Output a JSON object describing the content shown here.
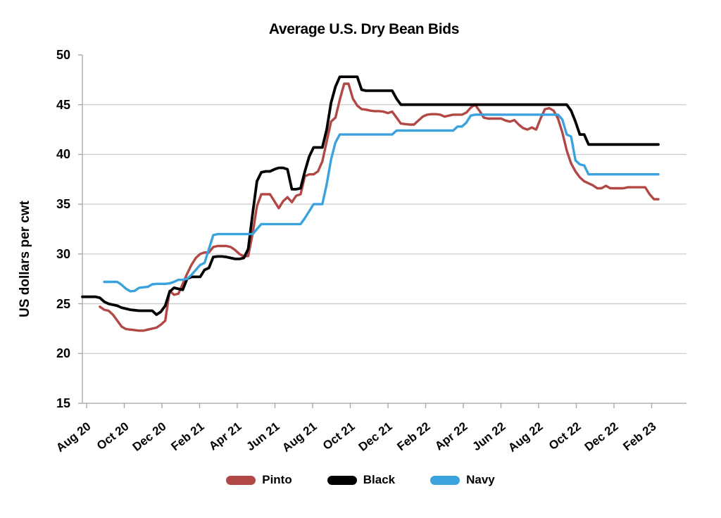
{
  "title": "Average U.S. Dry Bean Bids",
  "y_axis": {
    "label": "US dollars per cwt",
    "tick_labels": [
      "50",
      "45",
      "40",
      "35",
      "30",
      "25",
      "20",
      "15"
    ],
    "tick_values": [
      50,
      45,
      40,
      35,
      30,
      25,
      20,
      15
    ]
  },
  "x_axis": {
    "tick_labels": [
      "Aug 20",
      "Oct 20",
      "Dec 20",
      "Feb 21",
      "Apr 21",
      "Jun 21",
      "Aug 21",
      "Oct 21",
      "Dec 21",
      "Feb 22",
      "Apr 22",
      "Jun 22",
      "Aug 22",
      "Oct 22",
      "Dec 22",
      "Feb 23"
    ]
  },
  "legend": [
    {
      "label": "Pinto",
      "color": "#b24846"
    },
    {
      "label": "Black",
      "color": "#000000"
    },
    {
      "label": "Navy",
      "color": "#3aa2dc"
    }
  ],
  "colors": {
    "grid": "#cdcdce",
    "axis": "#b0b0b2",
    "tick": "#a8a8a8",
    "title_text": "#000000"
  },
  "chart_data": {
    "type": "line",
    "title": "Average U.S. Dry Bean Bids",
    "xlabel": "",
    "ylabel": "US dollars per cwt",
    "ylim": [
      15,
      50
    ],
    "grid": "horizontal",
    "legend_position": "bottom",
    "x_unit": "weekly observations, Aug 2020 - Feb 2023",
    "x_tick_labels": [
      "Aug 20",
      "Oct 20",
      "Dec 20",
      "Feb 21",
      "Apr 21",
      "Jun 21",
      "Aug 21",
      "Oct 21",
      "Dec 21",
      "Feb 22",
      "Apr 22",
      "Jun 22",
      "Aug 22",
      "Oct 22",
      "Dec 22",
      "Feb 23"
    ],
    "series": [
      {
        "name": "Pinto",
        "color": "#b24846",
        "values": [
          null,
          null,
          null,
          null,
          24.7,
          24.4,
          24.3,
          23.9,
          23.3,
          22.7,
          22.45,
          22.4,
          22.35,
          22.3,
          22.3,
          22.4,
          22.5,
          22.6,
          22.9,
          23.3,
          26.3,
          25.9,
          26.0,
          27.0,
          28.0,
          28.9,
          29.6,
          30.0,
          30.15,
          30.15,
          30.7,
          30.8,
          30.8,
          30.8,
          30.7,
          30.4,
          30.0,
          29.75,
          29.8,
          32.0,
          34.8,
          36.0,
          36.0,
          36.0,
          35.3,
          34.6,
          35.3,
          35.7,
          35.2,
          35.85,
          36.0,
          37.8,
          38.0,
          38.0,
          38.3,
          39.3,
          41.3,
          43.3,
          43.7,
          45.5,
          47.1,
          47.1,
          45.6,
          44.9,
          44.55,
          44.5,
          44.4,
          44.35,
          44.35,
          44.3,
          44.15,
          44.3,
          43.7,
          43.1,
          43.05,
          43.0,
          43.0,
          43.4,
          43.8,
          44.0,
          44.05,
          44.05,
          44.0,
          43.8,
          43.9,
          44.0,
          44.0,
          44.0,
          44.2,
          44.7,
          45.0,
          44.4,
          43.7,
          43.6,
          43.6,
          43.6,
          43.6,
          43.4,
          43.3,
          43.45,
          43.0,
          42.65,
          42.5,
          42.7,
          42.5,
          43.6,
          44.55,
          44.65,
          44.4,
          43.6,
          42.2,
          40.4,
          39.1,
          38.3,
          37.7,
          37.3,
          37.1,
          36.9,
          36.6,
          36.6,
          36.85,
          36.6,
          36.6,
          36.6,
          36.6,
          36.7,
          36.7,
          36.7,
          36.7,
          36.7,
          36.0,
          35.5,
          35.5
        ]
      },
      {
        "name": "Black",
        "color": "#000000",
        "values": [
          25.7,
          25.7,
          25.7,
          25.7,
          25.6,
          25.2,
          25.0,
          24.9,
          24.8,
          24.6,
          24.5,
          24.4,
          24.35,
          24.3,
          24.3,
          24.3,
          24.3,
          23.9,
          24.2,
          24.8,
          26.2,
          26.6,
          26.5,
          26.4,
          27.5,
          27.7,
          27.7,
          27.7,
          28.4,
          28.6,
          29.7,
          29.75,
          29.75,
          29.7,
          29.6,
          29.5,
          29.5,
          29.6,
          30.5,
          34.0,
          37.3,
          38.2,
          38.3,
          38.3,
          38.5,
          38.65,
          38.65,
          38.5,
          36.5,
          36.5,
          36.6,
          38.3,
          39.8,
          40.7,
          40.7,
          40.7,
          42.5,
          45.2,
          46.8,
          47.8,
          47.8,
          47.8,
          47.8,
          47.8,
          46.5,
          46.4,
          46.4,
          46.4,
          46.4,
          46.4,
          46.4,
          46.4,
          45.6,
          45.0,
          45.0,
          45.0,
          45.0,
          45.0,
          45.0,
          45.0,
          45.0,
          45.0,
          45.0,
          45.0,
          45.0,
          45.0,
          45.0,
          45.0,
          45.0,
          45.0,
          45.0,
          45.0,
          45.0,
          45.0,
          45.0,
          45.0,
          45.0,
          45.0,
          45.0,
          45.0,
          45.0,
          45.0,
          45.0,
          45.0,
          45.0,
          45.0,
          45.0,
          45.0,
          45.0,
          45.0,
          45.0,
          45.0,
          44.4,
          43.3,
          42.0,
          42.0,
          41.0,
          41.0,
          41.0,
          41.0,
          41.0,
          41.0,
          41.0,
          41.0,
          41.0,
          41.0,
          41.0,
          41.0,
          41.0,
          41.0,
          41.0,
          41.0,
          41.0
        ]
      },
      {
        "name": "Navy",
        "color": "#3aa2dc",
        "values": [
          null,
          null,
          null,
          null,
          null,
          27.2,
          27.2,
          27.2,
          27.2,
          26.9,
          26.5,
          26.25,
          26.3,
          26.6,
          26.65,
          26.7,
          26.95,
          27.0,
          27.0,
          27.0,
          27.05,
          27.2,
          27.4,
          27.4,
          27.5,
          27.9,
          28.4,
          28.9,
          29.1,
          30.5,
          31.9,
          32.0,
          32.0,
          32.0,
          32.0,
          32.0,
          32.0,
          32.0,
          32.0,
          32.0,
          32.5,
          33.0,
          33.0,
          33.0,
          33.0,
          33.0,
          33.0,
          33.0,
          33.0,
          33.0,
          33.0,
          33.6,
          34.3,
          35.0,
          35.0,
          35.0,
          37.0,
          39.5,
          41.2,
          42.0,
          42.0,
          42.0,
          42.0,
          42.0,
          42.0,
          42.0,
          42.0,
          42.0,
          42.0,
          42.0,
          42.0,
          42.0,
          42.4,
          42.4,
          42.4,
          42.4,
          42.4,
          42.4,
          42.4,
          42.4,
          42.4,
          42.4,
          42.4,
          42.4,
          42.4,
          42.4,
          42.8,
          42.8,
          43.2,
          43.9,
          44.0,
          44.0,
          44.0,
          44.0,
          44.0,
          44.0,
          44.0,
          44.0,
          44.0,
          44.0,
          44.0,
          44.0,
          44.0,
          44.0,
          44.0,
          44.0,
          44.0,
          44.0,
          44.0,
          44.0,
          43.5,
          42.0,
          41.8,
          39.4,
          39.0,
          38.9,
          38.0,
          38.0,
          38.0,
          38.0,
          38.0,
          38.0,
          38.0,
          38.0,
          38.0,
          38.0,
          38.0,
          38.0,
          38.0,
          38.0,
          38.0,
          38.0,
          38.0
        ]
      }
    ]
  }
}
